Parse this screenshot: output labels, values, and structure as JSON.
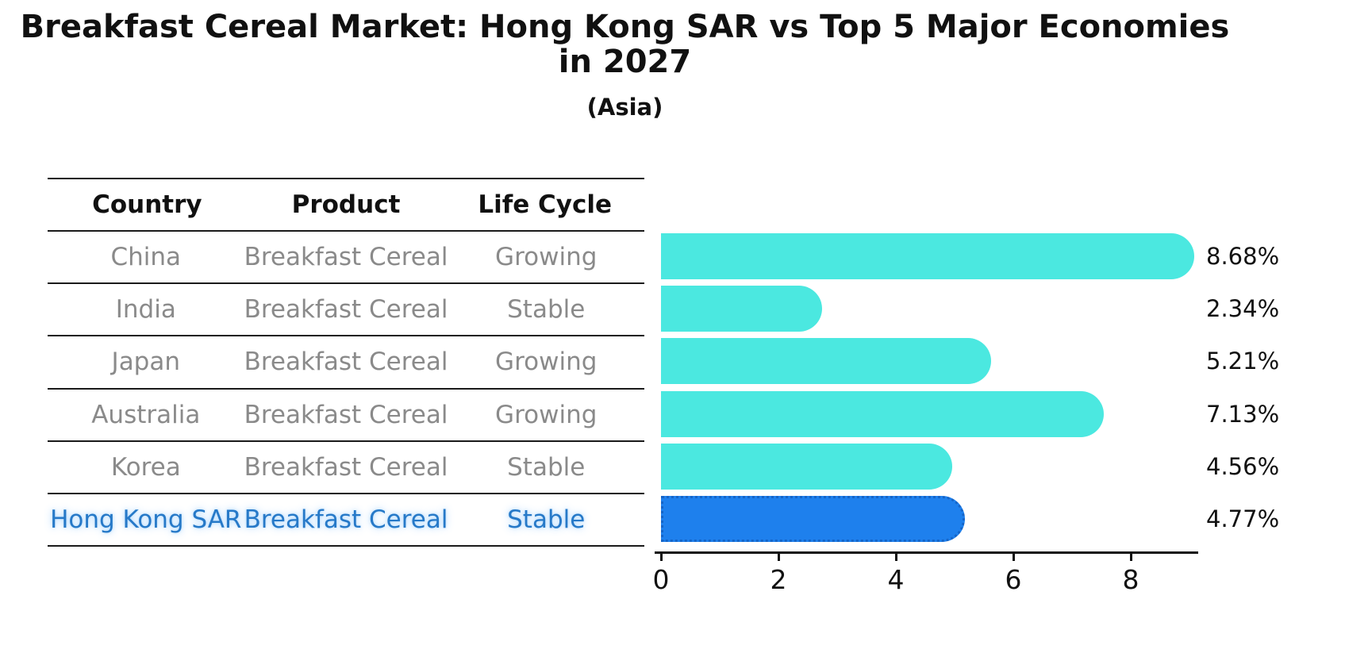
{
  "title": "Breakfast Cereal Market: Hong Kong SAR vs Top 5 Major Economies in 2027",
  "subtitle": "(Asia)",
  "table": {
    "headers": [
      "Country",
      "Product",
      "Life Cycle"
    ],
    "rows": [
      {
        "country": "China",
        "product": "Breakfast Cereal",
        "life_cycle": "Growing",
        "highlight": false
      },
      {
        "country": "India",
        "product": "Breakfast Cereal",
        "life_cycle": "Stable",
        "highlight": false
      },
      {
        "country": "Japan",
        "product": "Breakfast Cereal",
        "life_cycle": "Growing",
        "highlight": false
      },
      {
        "country": "Australia",
        "product": "Breakfast Cereal",
        "life_cycle": "Growing",
        "highlight": false
      },
      {
        "country": "Korea",
        "product": "Breakfast Cereal",
        "life_cycle": "Stable",
        "highlight": false
      },
      {
        "country": "Hong Kong SAR",
        "product": "Breakfast Cereal",
        "life_cycle": "Stable",
        "highlight": true
      }
    ]
  },
  "chart_data": {
    "type": "bar",
    "orientation": "horizontal",
    "categories": [
      "China",
      "India",
      "Japan",
      "Australia",
      "Korea",
      "Hong Kong SAR"
    ],
    "values": [
      8.68,
      2.34,
      5.21,
      7.13,
      4.56,
      4.77
    ],
    "value_labels": [
      "8.68%",
      "2.34%",
      "5.21%",
      "7.13%",
      "4.56%",
      "4.77%"
    ],
    "title": "Breakfast Cereal Market: Hong Kong SAR vs Top 5 Major Economies in 2027",
    "subtitle": "(Asia)",
    "xlabel": "",
    "ylabel": "",
    "xlim": [
      0,
      9.2
    ],
    "xticks": [
      0,
      2,
      4,
      6,
      8
    ],
    "grid": false,
    "legend": false,
    "bar_color": "#4be8e0",
    "highlight_color": "#1e80ed",
    "highlight_border_color": "#1565c8",
    "highlight_index": 5,
    "highlight_text_color": "#2679c8",
    "table_text_color": "#8a8a8a"
  }
}
